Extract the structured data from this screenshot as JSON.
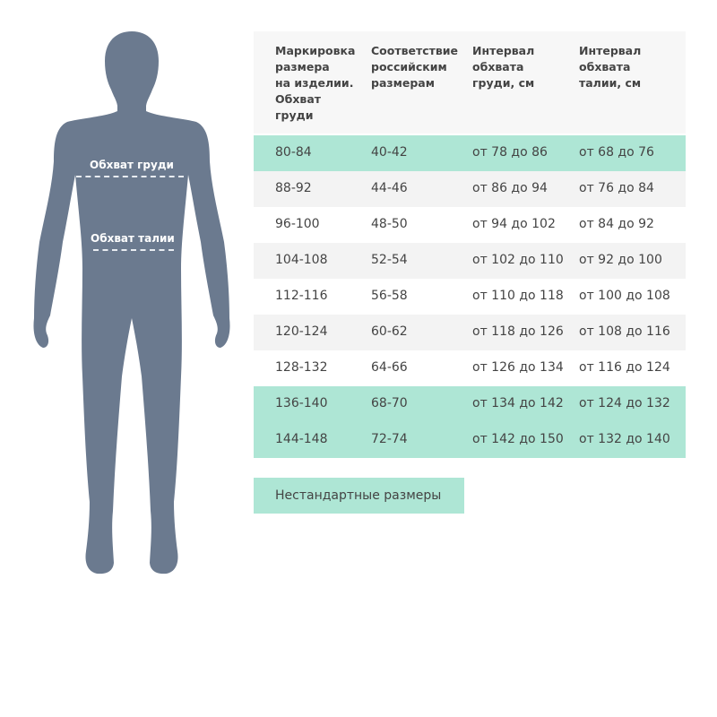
{
  "colors": {
    "silhouette": "#6b7a8f",
    "highlight": "#aee6d5",
    "stripe": "#f3f3f3",
    "header": "#f7f7f7",
    "text": "#444444"
  },
  "figure": {
    "chest_label": "Обхват груди",
    "waist_label": "Обхват талии"
  },
  "table": {
    "headers": [
      "Маркировка\nразмера\nна изделии.\nОбхват\nгруди",
      "Соответствие\nроссийским\nразмерам",
      "Интервал\nобхвата\nгруди, см",
      "Интервал\nобхвата\nталии, см"
    ],
    "rows": [
      {
        "style": "green",
        "cells": [
          "80-84",
          "40-42",
          "от 78 до 86",
          "от 68 до 76"
        ]
      },
      {
        "style": "gray",
        "cells": [
          "88-92",
          "44-46",
          "от 86 до 94",
          "от 76 до 84"
        ]
      },
      {
        "style": "white",
        "cells": [
          "96-100",
          "48-50",
          "от 94 до 102",
          "от 84 до 92"
        ]
      },
      {
        "style": "gray",
        "cells": [
          "104-108",
          "52-54",
          "от 102 до 110",
          "от 92 до 100"
        ]
      },
      {
        "style": "white",
        "cells": [
          "112-116",
          "56-58",
          "от 110 до 118",
          "от 100 до 108"
        ]
      },
      {
        "style": "gray",
        "cells": [
          "120-124",
          "60-62",
          "от 118 до 126",
          "от 108 до 116"
        ]
      },
      {
        "style": "white",
        "cells": [
          "128-132",
          "64-66",
          "от 126 до 134",
          "от 116 до 124"
        ]
      },
      {
        "style": "green",
        "cells": [
          "136-140",
          "68-70",
          "от 134 до 142",
          "от 124 до 132"
        ]
      },
      {
        "style": "green",
        "cells": [
          "144-148",
          "72-74",
          "от 142 до 150",
          "от 132 до 140"
        ]
      }
    ]
  },
  "nonstandard_button": "Нестандартные размеры"
}
